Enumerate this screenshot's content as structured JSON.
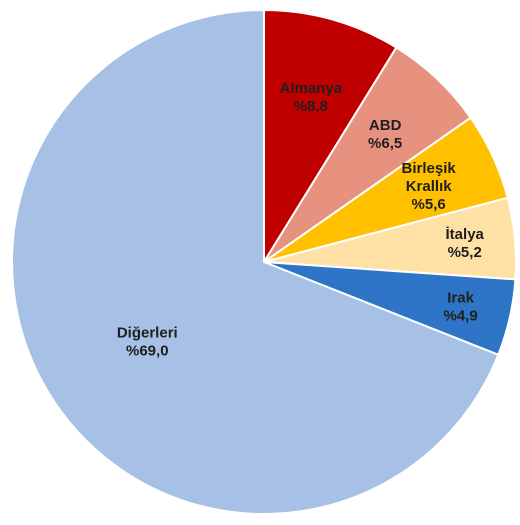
{
  "chart_data": {
    "type": "pie",
    "title": "",
    "slices": [
      {
        "label": [
          "Almanya"
        ],
        "value_label": "%8,8",
        "value": 8.8,
        "color": "#C00000",
        "text_color": "#1F1F1F"
      },
      {
        "label": [
          "ABD"
        ],
        "value_label": "%6,5",
        "value": 6.5,
        "color": "#E6927F",
        "text_color": "#1F1F1F"
      },
      {
        "label": [
          "Birleşik",
          "Krallık"
        ],
        "value_label": "%5,6",
        "value": 5.6,
        "color": "#FFC000",
        "text_color": "#1F1F1F"
      },
      {
        "label": [
          "İtalya"
        ],
        "value_label": "%5,2",
        "value": 5.2,
        "color": "#FFE1A6",
        "text_color": "#1F1F1F"
      },
      {
        "label": [
          "Irak"
        ],
        "value_label": "%4,9",
        "value": 4.9,
        "color": "#2E75C8",
        "text_color": "#1F1F1F"
      },
      {
        "label": [
          "Diğerleri"
        ],
        "value_label": "%69,0",
        "value": 69.0,
        "color": "#A7C0E5",
        "text_color": "#1F1F1F"
      }
    ],
    "start_angle_deg": 0,
    "direction": "clockwise",
    "legend": "none"
  }
}
